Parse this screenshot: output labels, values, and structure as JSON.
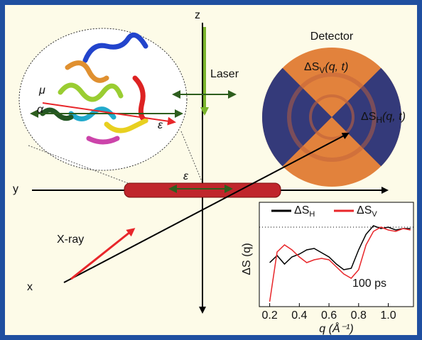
{
  "labels": {
    "z": "z",
    "y": "y",
    "x": "x",
    "xray": "X-ray",
    "laser": "Laser",
    "detector": "Detector",
    "mu": "μ",
    "alpha": "α",
    "epsilon_protein": "ε",
    "epsilon_beam": "ε"
  },
  "detector_labels": [
    {
      "main": "ΔS",
      "sub": "V",
      "arg": "(q, t)"
    },
    {
      "main": "ΔS",
      "sub": "H",
      "arg": "(q, t)"
    }
  ],
  "chart_data": {
    "type": "line",
    "xlabel": "q (Å⁻¹)",
    "ylabel": "ΔS (q)",
    "annotation": "100 ps",
    "x": [
      0.2,
      0.25,
      0.3,
      0.35,
      0.4,
      0.45,
      0.5,
      0.55,
      0.6,
      0.65,
      0.7,
      0.75,
      0.8,
      0.85,
      0.9,
      0.95,
      1.0,
      1.05,
      1.1,
      1.15
    ],
    "series": [
      {
        "name": "ΔS",
        "sub": "H",
        "color": "#000000",
        "values": [
          -0.5,
          -0.4,
          -0.52,
          -0.42,
          -0.38,
          -0.32,
          -0.3,
          -0.36,
          -0.42,
          -0.52,
          -0.6,
          -0.58,
          -0.32,
          -0.1,
          0.02,
          -0.02,
          0,
          -0.04,
          -0.02,
          -0.02
        ]
      },
      {
        "name": "ΔS",
        "sub": "V",
        "color": "#e8262a",
        "values": [
          -1.05,
          -0.35,
          -0.25,
          -0.32,
          -0.42,
          -0.5,
          -0.46,
          -0.44,
          -0.46,
          -0.56,
          -0.66,
          -0.72,
          -0.6,
          -0.25,
          -0.06,
          0,
          -0.04,
          -0.06,
          -0.02,
          -0.04
        ]
      }
    ],
    "xlim": [
      0.13,
      1.17
    ],
    "xticks": [
      0.2,
      0.4,
      0.6,
      0.8,
      {
        "value": 1,
        "label": "1.0"
      }
    ],
    "ylim": [
      -1.1,
      0.2
    ],
    "hline": 0
  }
}
